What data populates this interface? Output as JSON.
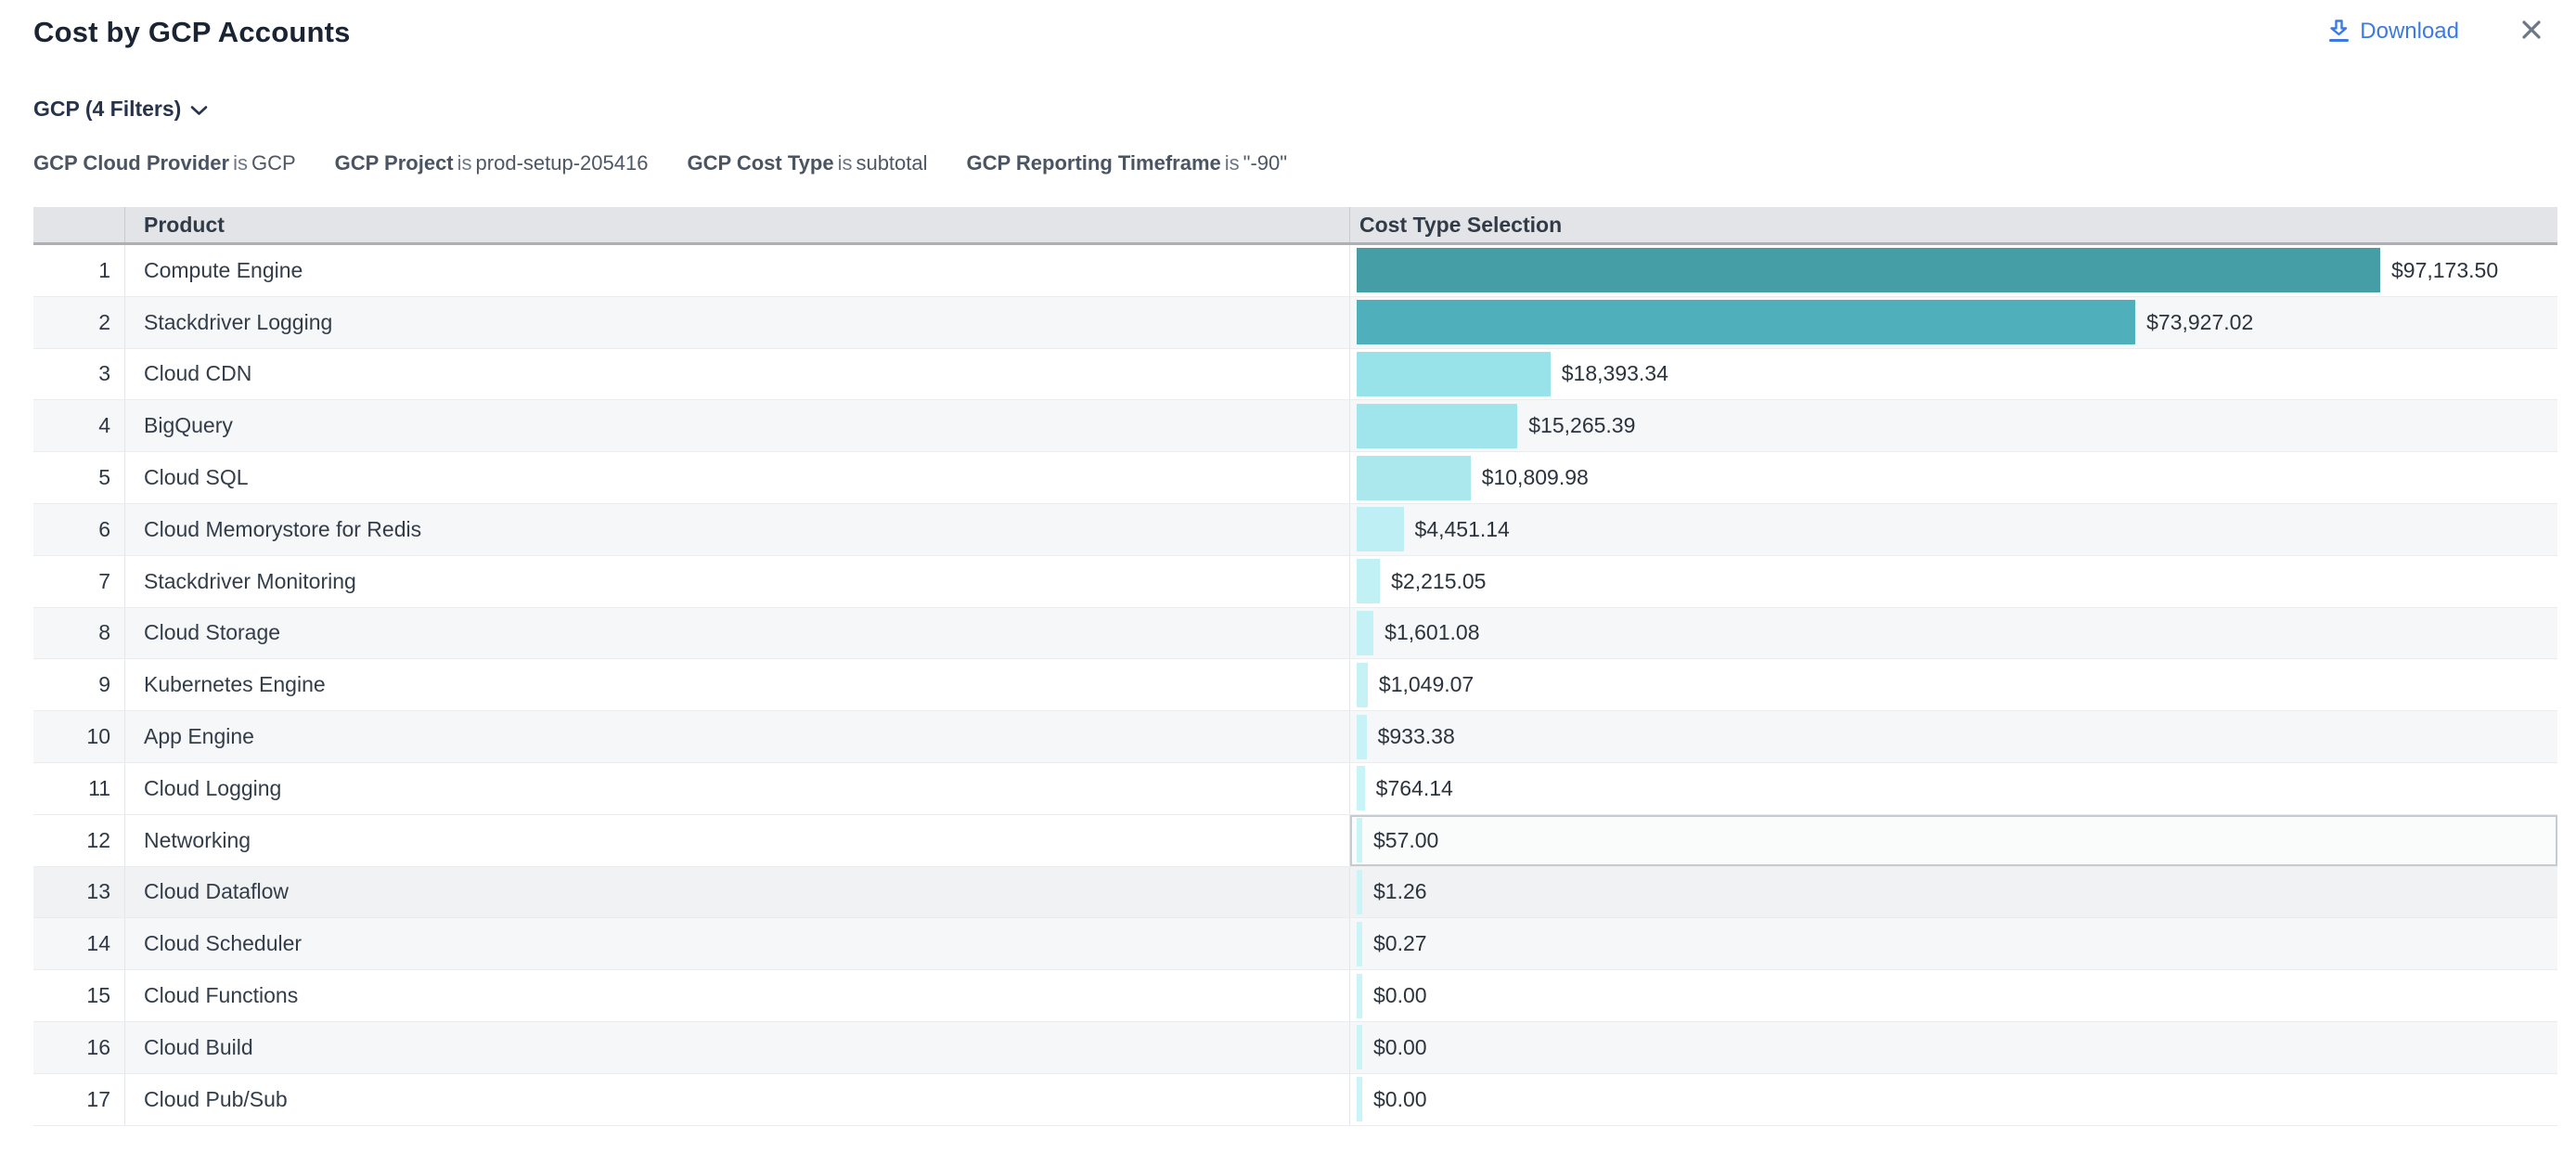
{
  "header": {
    "title": "Cost by GCP Accounts",
    "download_label": "Download"
  },
  "filters": {
    "toggle_label": "GCP (4 Filters)",
    "chips": [
      {
        "field": "GCP Cloud Provider",
        "op": "is",
        "value": "GCP"
      },
      {
        "field": "GCP Project",
        "op": "is",
        "value": "prod-setup-205416"
      },
      {
        "field": "GCP Cost Type",
        "op": "is",
        "value": "subtotal"
      },
      {
        "field": "GCP Reporting Timeframe",
        "op": "is",
        "value": "\"-90\""
      }
    ]
  },
  "table": {
    "index_header": "",
    "product_header": "Product",
    "cost_header": "Cost Type Selection",
    "rows": [
      {
        "index": "1",
        "product": "Compute Engine",
        "cost_label": "$97,173.50",
        "value": 97173.5,
        "bar_color": "#459ea6",
        "state": "normal"
      },
      {
        "index": "2",
        "product": "Stackdriver Logging",
        "cost_label": "$73,927.02",
        "value": 73927.02,
        "bar_color": "#4fb0bc",
        "state": "normal"
      },
      {
        "index": "3",
        "product": "Cloud CDN",
        "cost_label": "$18,393.34",
        "value": 18393.34,
        "bar_color": "#98e2ea",
        "state": "normal"
      },
      {
        "index": "4",
        "product": "BigQuery",
        "cost_label": "$15,265.39",
        "value": 15265.39,
        "bar_color": "#a0e5ec",
        "state": "normal"
      },
      {
        "index": "5",
        "product": "Cloud SQL",
        "cost_label": "$10,809.98",
        "value": 10809.98,
        "bar_color": "#aae8ee",
        "state": "normal"
      },
      {
        "index": "6",
        "product": "Cloud Memorystore for Redis",
        "cost_label": "$4,451.14",
        "value": 4451.14,
        "bar_color": "#bdeff4",
        "state": "normal"
      },
      {
        "index": "7",
        "product": "Stackdriver Monitoring",
        "cost_label": "$2,215.05",
        "value": 2215.05,
        "bar_color": "#c1f0f5",
        "state": "normal"
      },
      {
        "index": "8",
        "product": "Cloud Storage",
        "cost_label": "$1,601.08",
        "value": 1601.08,
        "bar_color": "#c4f1f6",
        "state": "normal"
      },
      {
        "index": "9",
        "product": "Kubernetes Engine",
        "cost_label": "$1,049.07",
        "value": 1049.07,
        "bar_color": "#c6f2f6",
        "state": "normal"
      },
      {
        "index": "10",
        "product": "App Engine",
        "cost_label": "$933.38",
        "value": 933.38,
        "bar_color": "#c7f2f7",
        "state": "normal"
      },
      {
        "index": "11",
        "product": "Cloud Logging",
        "cost_label": "$764.14",
        "value": 764.14,
        "bar_color": "#c8f3f7",
        "state": "normal"
      },
      {
        "index": "12",
        "product": "Networking",
        "cost_label": "$57.00",
        "value": 57.0,
        "bar_color": "#c9f3f7",
        "state": "selected"
      },
      {
        "index": "13",
        "product": "Cloud Dataflow",
        "cost_label": "$1.26",
        "value": 1.26,
        "bar_color": "#c9f4f8",
        "state": "hovered"
      },
      {
        "index": "14",
        "product": "Cloud Scheduler",
        "cost_label": "$0.27",
        "value": 0.27,
        "bar_color": "#caf4f8",
        "state": "normal"
      },
      {
        "index": "15",
        "product": "Cloud Functions",
        "cost_label": "$0.00",
        "value": 0.0,
        "bar_color": "#caf4f8",
        "state": "normal"
      },
      {
        "index": "16",
        "product": "Cloud Build",
        "cost_label": "$0.00",
        "value": 0.0,
        "bar_color": "#cbf4f8",
        "state": "normal"
      },
      {
        "index": "17",
        "product": "Cloud Pub/Sub",
        "cost_label": "$0.00",
        "value": 0.0,
        "bar_color": "#cbf4f8",
        "state": "normal"
      }
    ]
  },
  "colors": {
    "accent_blue": "#3b7ae2",
    "title_text": "#1a2433",
    "header_bg": "#e3e4e7",
    "bar_teal_dark": "#459ea6",
    "bar_teal_mid": "#4fb0bc",
    "bar_cyan_light": "#caf4f8",
    "close_icon": "#6e7785"
  },
  "chart_data": {
    "type": "bar",
    "orientation": "horizontal",
    "title": "Cost by GCP Accounts",
    "series_label": "Cost Type Selection",
    "categories": [
      "Compute Engine",
      "Stackdriver Logging",
      "Cloud CDN",
      "BigQuery",
      "Cloud SQL",
      "Cloud Memorystore for Redis",
      "Stackdriver Monitoring",
      "Cloud Storage",
      "Kubernetes Engine",
      "App Engine",
      "Cloud Logging",
      "Networking",
      "Cloud Dataflow",
      "Cloud Scheduler",
      "Cloud Functions",
      "Cloud Build",
      "Cloud Pub/Sub"
    ],
    "values": [
      97173.5,
      73927.02,
      18393.34,
      15265.39,
      10809.98,
      4451.14,
      2215.05,
      1601.08,
      1049.07,
      933.38,
      764.14,
      57.0,
      1.26,
      0.27,
      0.0,
      0.0,
      0.0
    ],
    "value_labels": [
      "$97,173.50",
      "$73,927.02",
      "$18,393.34",
      "$15,265.39",
      "$10,809.98",
      "$4,451.14",
      "$2,215.05",
      "$1,601.08",
      "$1,049.07",
      "$933.38",
      "$764.14",
      "$57.00",
      "$1.26",
      "$0.27",
      "$0.00",
      "$0.00",
      "$0.00"
    ],
    "xlim": [
      0,
      114000
    ],
    "grid": false,
    "legend": false,
    "value_labels_position": "right-of-bar"
  }
}
